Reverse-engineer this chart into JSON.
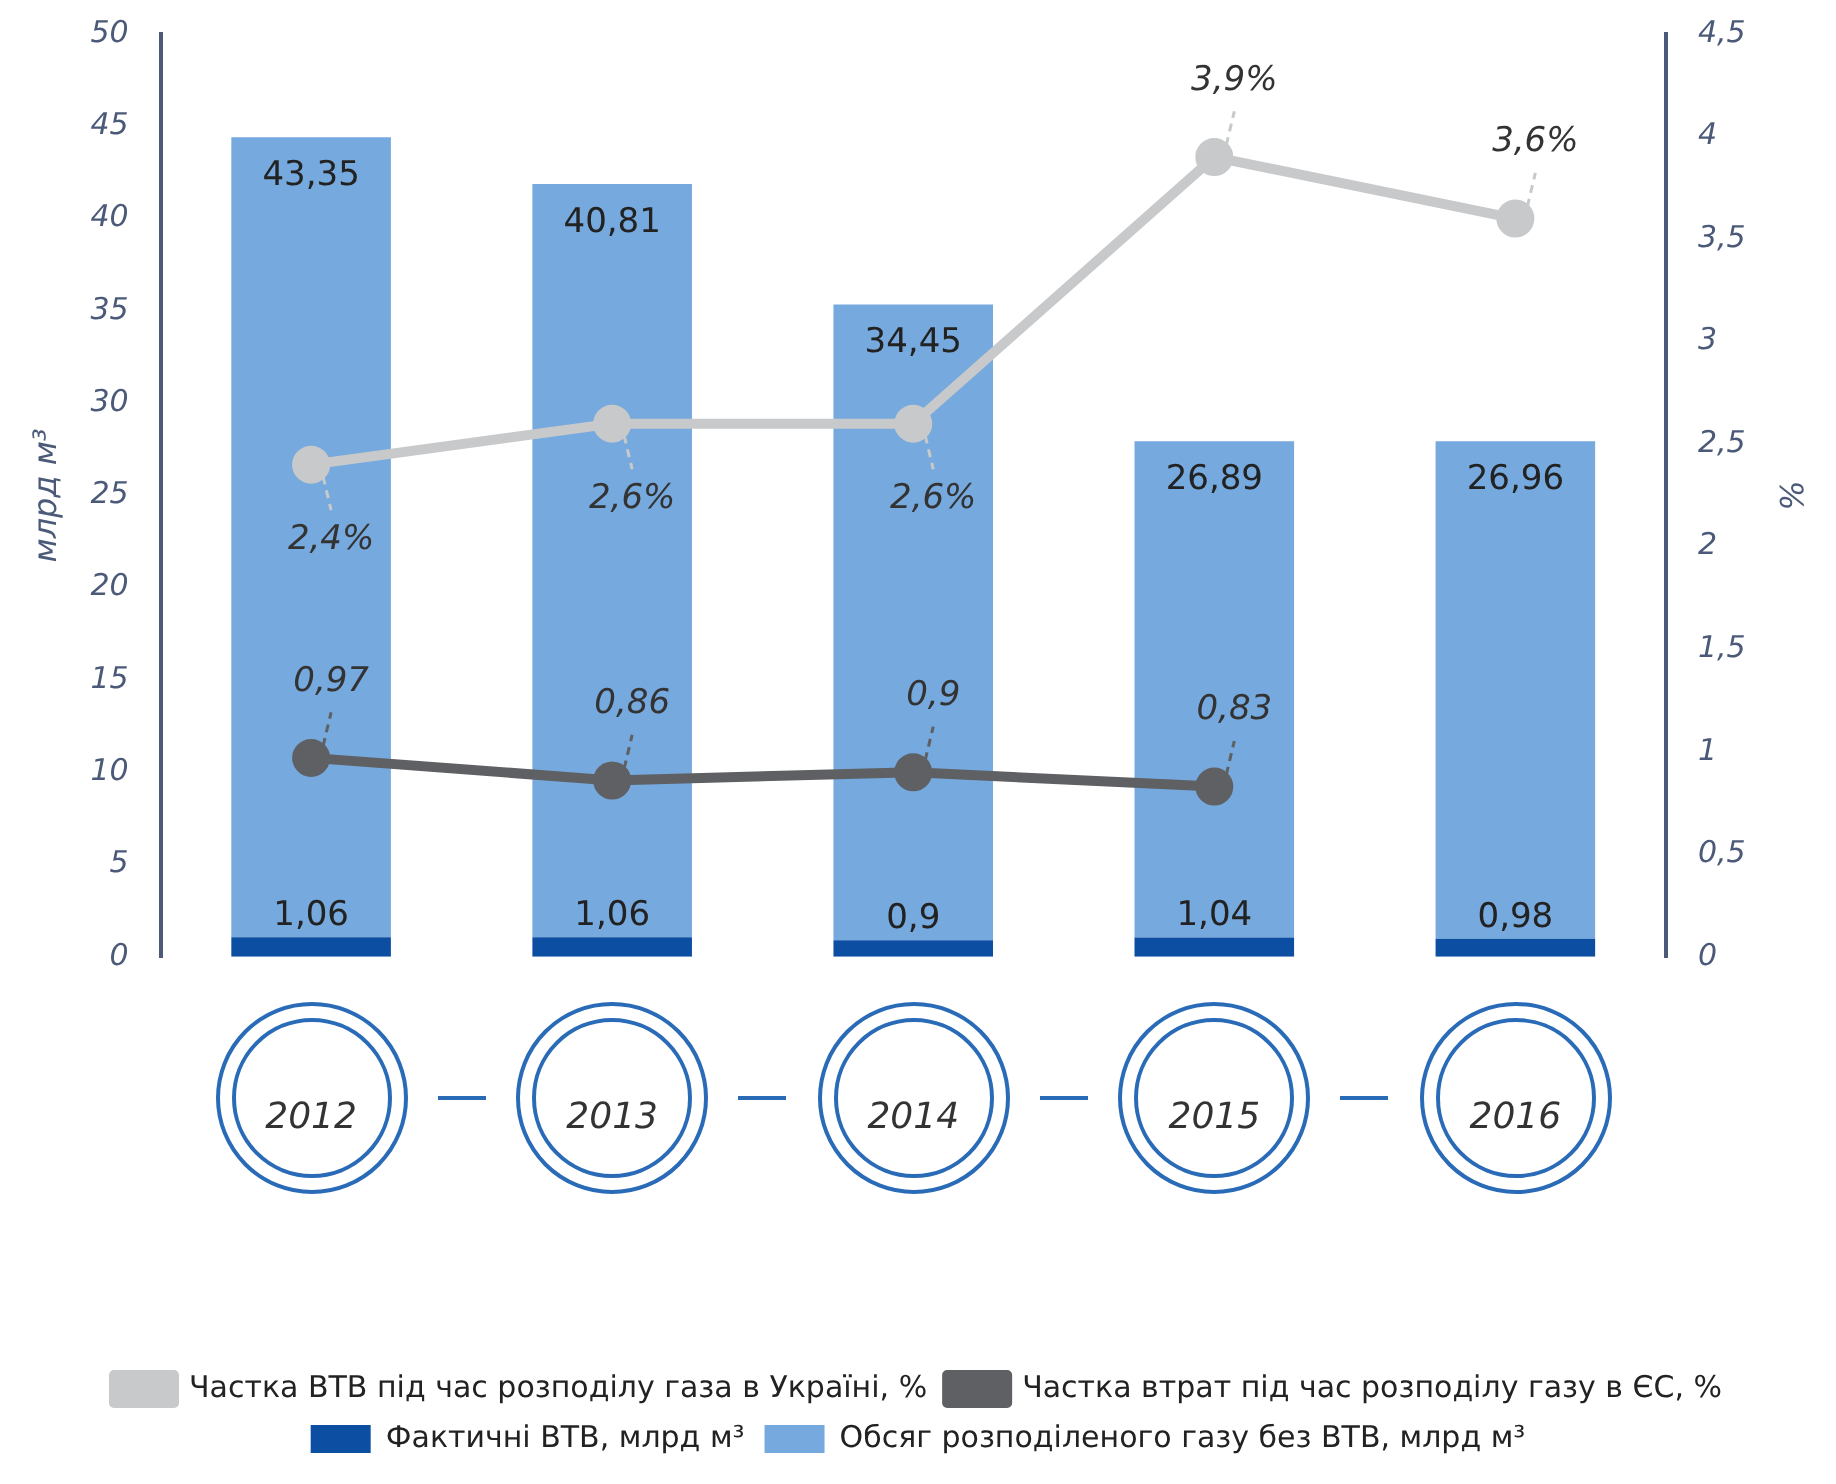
{
  "chart_data": {
    "type": "bar",
    "stacked": true,
    "ylabel": "млрд м³",
    "y2label": "%",
    "categories": [
      "2012",
      "2013",
      "2014",
      "2015",
      "2016"
    ],
    "series": [
      {
        "name": "Фактичні ВТВ, млрд м³",
        "color": "#0b4ea2",
        "values": [
          1.06,
          1.06,
          0.9,
          1.04,
          0.98
        ],
        "value_labels": [
          "1,06",
          "1,06",
          "0,9",
          "1,04",
          "0,98"
        ]
      },
      {
        "name": "Обсяг розподіленого газу без ВТВ, млрд м³",
        "color": "#76a9dd",
        "values": [
          43.35,
          40.81,
          34.45,
          26.89,
          26.96
        ],
        "value_labels": [
          "43,35",
          "40,81",
          "34,45",
          "26,89",
          "26,96"
        ]
      },
      {
        "name": "Частка ВТВ під час розподілу газа в Україні, %",
        "type": "line",
        "axis": "y2",
        "color": "#c8c9cb",
        "values": [
          2.4,
          2.6,
          2.6,
          3.9,
          3.6
        ],
        "value_labels": [
          "2,4%",
          "2,6%",
          "2,6%",
          "3,9%",
          "3,6%"
        ]
      },
      {
        "name": "Частка втрат під час розподілу газу в ЄС, %",
        "type": "line",
        "axis": "y2",
        "color": "#5f6063",
        "values": [
          0.97,
          0.86,
          0.9,
          0.83,
          null
        ],
        "value_labels": [
          "0,97",
          "0,86",
          "0,9",
          "0,83",
          null
        ]
      }
    ],
    "ylim": [
      0,
      50
    ],
    "yticks": [
      0,
      5,
      10,
      15,
      20,
      25,
      30,
      35,
      40,
      45,
      50
    ],
    "y2lim": [
      0,
      4.5
    ],
    "y2ticks": [
      0,
      {
        "value": 0.5,
        "label": "0,5"
      },
      1,
      {
        "value": 1.5,
        "label": "1,5"
      },
      2,
      {
        "value": 2.5,
        "label": "2,5"
      },
      3,
      {
        "value": 3.5,
        "label": "3,5"
      },
      4,
      {
        "value": 4.5,
        "label": "4,5"
      }
    ],
    "grid": false,
    "legend": "bottom",
    "marker": "circle",
    "line_style": "solid"
  }
}
